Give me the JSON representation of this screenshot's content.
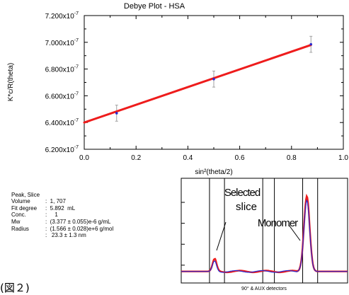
{
  "chart_data": [
    {
      "type": "scatter",
      "title": "Debye Plot - HSA",
      "xlabel": "sin²(theta/2)",
      "ylabel": "K*c/R(theta)",
      "xlim": [
        0.0,
        1.0
      ],
      "ylim": [
        6.2e-07,
        7.2e-07
      ],
      "x_ticks": [
        "0.0",
        "0.2",
        "0.4",
        "0.6",
        "0.8",
        "1.0"
      ],
      "y_ticks": [
        {
          "mant": "6.200x10",
          "exp": "-7",
          "value": 6.2e-07
        },
        {
          "mant": "6.400x10",
          "exp": "-7",
          "value": 6.4e-07
        },
        {
          "mant": "6.600x10",
          "exp": "-7",
          "value": 6.6e-07
        },
        {
          "mant": "6.800x10",
          "exp": "-7",
          "value": 6.8e-07
        },
        {
          "mant": "7.000x10",
          "exp": "-7",
          "value": 7e-07
        },
        {
          "mant": "7.200x10",
          "exp": "-7",
          "value": 7.2e-07
        }
      ],
      "points": [
        {
          "x": 0.125,
          "y": 6.47e-07,
          "err": 6e-09
        },
        {
          "x": 0.5,
          "y": 6.725e-07,
          "err": 6e-09
        },
        {
          "x": 0.875,
          "y": 6.985e-07,
          "err": 6e-09
        }
      ],
      "fit_line": {
        "x0": 0.0,
        "y0": 6.4e-07,
        "x1": 0.875,
        "y1": 6.98e-07
      },
      "grid": false,
      "colors": {
        "fit": "#ee1c1c",
        "point": "#2a2ad0",
        "error_bar": "#a0a0a0"
      }
    },
    {
      "type": "line",
      "xlabel": "90° & AUX detectors",
      "annotations": [
        "Selected",
        "slice",
        "Monomer"
      ],
      "series": [
        {
          "color": "#ee1c1c",
          "peaks": [
            {
              "center": 0.2,
              "height": 0.12
            },
            {
              "center": 0.755,
              "height": 0.72
            }
          ]
        },
        {
          "color": "#2a2ad0",
          "peaks": [
            {
              "center": 0.2,
              "height": 0.1
            },
            {
              "center": 0.755,
              "height": 0.68
            }
          ]
        }
      ],
      "baseline": 0.11,
      "vertical_markers": [
        0.17,
        0.26,
        0.49,
        0.56,
        0.73,
        0.82
      ]
    }
  ],
  "results": [
    {
      "label": "Peak, Slice",
      "value": ":  1, 707"
    },
    {
      "label": "Volume",
      "value": ":  5.892  mL"
    },
    {
      "label": "Fit degree",
      "value": ":     1"
    },
    {
      "label": "Conc.",
      "value": ":  (3.377 ± 0.055)e-6 g/mL"
    },
    {
      "label": "Mw",
      "value": ":  (1.566 ± 0.028)e+6 g/mol"
    },
    {
      "label": "Radius",
      "value": ":   23.3 ± 1.3 nm"
    }
  ],
  "caption": "(図２)"
}
